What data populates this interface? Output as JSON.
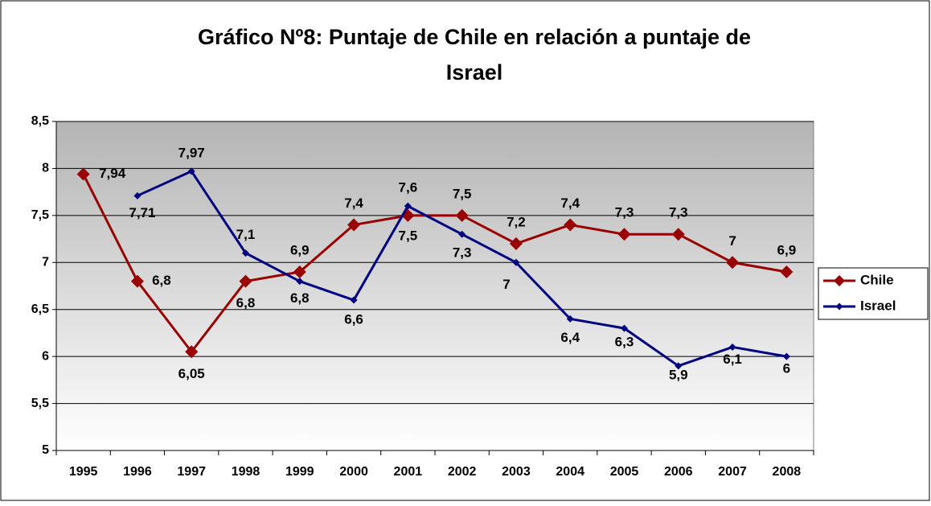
{
  "chart_data": {
    "type": "line",
    "title": "Gráfico Nº8: Puntaje de Chile en relación a puntaje de Israel",
    "categories": [
      "1995",
      "1996",
      "1997",
      "1998",
      "1999",
      "2000",
      "2001",
      "2002",
      "2003",
      "2004",
      "2005",
      "2006",
      "2007",
      "2008"
    ],
    "series": [
      {
        "name": "Chile",
        "color": "#990000",
        "values": [
          7.94,
          6.8,
          6.05,
          6.8,
          6.9,
          7.4,
          7.5,
          7.5,
          7.2,
          7.4,
          7.3,
          7.3,
          7,
          6.9
        ],
        "value_labels": [
          "7,94",
          "6,8",
          "6,05",
          "6,8",
          "6,9",
          "7,4",
          "7,5",
          "7,5",
          "7,2",
          "7,4",
          "7,3",
          "7,3",
          "7",
          "6,9"
        ]
      },
      {
        "name": "Israel",
        "color": "#000080",
        "values": [
          null,
          7.71,
          7.97,
          7.1,
          6.8,
          6.6,
          7.6,
          7.3,
          7,
          6.4,
          6.3,
          5.9,
          6.1,
          6
        ],
        "value_labels": [
          null,
          "7,71",
          "7,97",
          "7,1",
          "6,8",
          "6,6",
          "7,6",
          "7,3",
          "7",
          "6,4",
          "6,3",
          "5,9",
          "6,1",
          "6"
        ]
      }
    ],
    "ylim": [
      5,
      8.5
    ],
    "yticks": [
      5,
      {
        "value": 5.5,
        "label": "5,5"
      },
      6,
      {
        "value": 6.5,
        "label": "6,5"
      },
      7,
      {
        "value": 7.5,
        "label": "7,5"
      },
      8,
      {
        "value": 8.5,
        "label": "8,5"
      }
    ],
    "grid": true,
    "legend": "right"
  }
}
